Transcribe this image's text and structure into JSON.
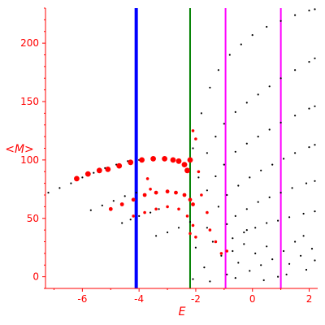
{
  "chart_data": {
    "type": "scatter",
    "title": "",
    "xlabel": "E",
    "ylabel": "<M>",
    "xlim": [
      -7.3,
      2.3
    ],
    "ylim": [
      -10,
      230
    ],
    "x_ticks": [
      -6,
      -4,
      -2,
      0,
      2
    ],
    "x_tick_labels": [
      "-6",
      "-4",
      "-2",
      "0",
      "2"
    ],
    "y_ticks": [
      0,
      50,
      100,
      150,
      200
    ],
    "y_tick_labels": [
      "0",
      "50",
      "100",
      "150",
      "200"
    ],
    "grid": false,
    "legend": "none",
    "axis_color": "#ff0000",
    "vertical_lines": [
      {
        "x": -4.1,
        "color": "#0000ff",
        "width": "thick"
      },
      {
        "x": -2.2,
        "color": "#008000",
        "width": "thin"
      },
      {
        "x": -0.95,
        "color": "#ff00ff",
        "width": "thin"
      },
      {
        "x": 1.0,
        "color": "#ff00ff",
        "width": "thin"
      }
    ],
    "series": [
      {
        "points": [
          [
            -7.2,
            72
          ],
          [
            -6.8,
            76
          ],
          [
            -6.4,
            80
          ],
          [
            -6.0,
            85
          ],
          [
            -5.6,
            89
          ],
          [
            -5.2,
            93
          ],
          [
            -4.8,
            96
          ],
          [
            -4.4,
            99
          ],
          [
            -4.0,
            100
          ]
        ],
        "color": "#000000",
        "marker": "dot"
      },
      {
        "points": [
          [
            -5.7,
            57
          ],
          [
            -5.3,
            61
          ],
          [
            -4.9,
            65
          ],
          [
            -4.5,
            69
          ],
          [
            -4.1,
            72
          ]
        ],
        "color": "#000000",
        "marker": "dot"
      },
      {
        "points": [
          [
            -4.6,
            46
          ],
          [
            -4.3,
            49
          ],
          [
            -4.0,
            52
          ],
          [
            -3.6,
            55
          ],
          [
            -3.3,
            58
          ]
        ],
        "color": "#000000",
        "marker": "dot"
      },
      {
        "points": [
          [
            -3.4,
            35
          ],
          [
            -3.0,
            38
          ],
          [
            -2.6,
            42
          ],
          [
            -2.2,
            47
          ]
        ],
        "color": "#000000",
        "marker": "dot"
      },
      {
        "points": [
          [
            -2.1,
            110
          ],
          [
            -1.8,
            140
          ],
          [
            -1.5,
            162
          ],
          [
            -1.2,
            177
          ],
          [
            -0.8,
            190
          ],
          [
            -0.4,
            199
          ],
          [
            0.0,
            207
          ],
          [
            0.5,
            214
          ],
          [
            1.0,
            219
          ],
          [
            1.5,
            224
          ],
          [
            2.0,
            228
          ],
          [
            2.2,
            229
          ]
        ],
        "color": "#000000",
        "marker": "dot"
      },
      {
        "points": [
          [
            -1.9,
            85
          ],
          [
            -1.6,
            106
          ],
          [
            -1.3,
            120
          ],
          [
            -1.0,
            131
          ],
          [
            -0.6,
            141
          ],
          [
            -0.2,
            149
          ],
          [
            0.2,
            156
          ],
          [
            0.6,
            163
          ],
          [
            1.0,
            170
          ],
          [
            1.5,
            177
          ],
          [
            2.0,
            184
          ],
          [
            2.2,
            187
          ]
        ],
        "color": "#000000",
        "marker": "dot"
      },
      {
        "points": [
          [
            -1.6,
            74
          ],
          [
            -1.3,
            86
          ],
          [
            -1.0,
            96
          ],
          [
            -0.6,
            107
          ],
          [
            -0.2,
            114
          ],
          [
            0.2,
            120
          ],
          [
            0.6,
            126
          ],
          [
            1.0,
            132
          ],
          [
            1.5,
            138
          ],
          [
            2.0,
            144
          ],
          [
            2.2,
            146
          ]
        ],
        "color": "#000000",
        "marker": "dot"
      },
      {
        "points": [
          [
            -1.2,
            60
          ],
          [
            -0.9,
            70
          ],
          [
            -0.5,
            78
          ],
          [
            -0.1,
            85
          ],
          [
            0.3,
            91
          ],
          [
            0.7,
            96
          ],
          [
            1.1,
            101
          ],
          [
            1.5,
            106
          ],
          [
            2.0,
            111
          ],
          [
            2.2,
            113
          ]
        ],
        "color": "#000000",
        "marker": "dot"
      },
      {
        "points": [
          [
            -0.9,
            45
          ],
          [
            -0.6,
            52
          ],
          [
            -0.2,
            58
          ],
          [
            0.2,
            64
          ],
          [
            0.6,
            68
          ],
          [
            1.0,
            72
          ],
          [
            1.4,
            76
          ],
          [
            1.9,
            80
          ],
          [
            2.2,
            82
          ]
        ],
        "color": "#000000",
        "marker": "dot"
      },
      {
        "points": [
          [
            -0.7,
            33
          ],
          [
            -0.3,
            38
          ],
          [
            0.1,
            42
          ],
          [
            0.5,
            46
          ],
          [
            0.9,
            48
          ],
          [
            1.3,
            51
          ],
          [
            1.8,
            54
          ],
          [
            2.2,
            56
          ]
        ],
        "color": "#000000",
        "marker": "dot"
      },
      {
        "points": [
          [
            -2.0,
            25
          ],
          [
            -1.7,
            8
          ],
          [
            -1.4,
            30
          ],
          [
            -1.1,
            18
          ],
          [
            -0.9,
            2
          ],
          [
            -0.7,
            22
          ],
          [
            -0.5,
            12
          ],
          [
            -0.3,
            28
          ],
          [
            -0.1,
            5
          ],
          [
            0.1,
            20
          ],
          [
            0.3,
            10
          ],
          [
            0.5,
            26
          ],
          [
            0.7,
            15
          ],
          [
            0.9,
            0
          ],
          [
            1.1,
            22
          ],
          [
            1.3,
            11
          ],
          [
            1.5,
            30
          ],
          [
            1.7,
            18
          ],
          [
            1.9,
            6
          ],
          [
            2.1,
            24
          ],
          [
            2.2,
            14
          ],
          [
            -2.1,
            -2
          ],
          [
            -1.5,
            -4
          ],
          [
            -0.6,
            -1
          ],
          [
            0.4,
            -3
          ],
          [
            1.2,
            2
          ],
          [
            1.8,
            35
          ],
          [
            -0.2,
            40
          ],
          [
            -1.6,
            42
          ]
        ],
        "color": "#000000",
        "marker": "dot"
      },
      {
        "points": [
          [
            -6.2,
            84
          ],
          [
            -5.8,
            88
          ],
          [
            -5.4,
            91
          ],
          [
            -5.1,
            92
          ],
          [
            -4.7,
            95
          ],
          [
            -4.3,
            98
          ],
          [
            -3.9,
            100
          ],
          [
            -3.5,
            101
          ],
          [
            -3.1,
            101
          ],
          [
            -2.8,
            100
          ],
          [
            -2.6,
            99
          ],
          [
            -2.4,
            96
          ],
          [
            -2.3,
            91
          ],
          [
            -2.2,
            100
          ]
        ],
        "color": "#ff0000",
        "marker": "large"
      },
      {
        "points": [
          [
            -5.0,
            58
          ],
          [
            -4.6,
            62
          ],
          [
            -4.2,
            66
          ],
          [
            -3.8,
            70
          ],
          [
            -3.4,
            72
          ],
          [
            -3.0,
            73
          ],
          [
            -2.7,
            72
          ],
          [
            -2.4,
            70
          ],
          [
            -2.2,
            66
          ],
          [
            -2.1,
            62
          ]
        ],
        "color": "#ff0000",
        "marker": "medium"
      },
      {
        "points": [
          [
            -4.2,
            52
          ],
          [
            -3.8,
            55
          ],
          [
            -3.4,
            58
          ],
          [
            -3.0,
            60
          ],
          [
            -2.6,
            58
          ],
          [
            -2.3,
            52
          ],
          [
            -2.1,
            44
          ],
          [
            -2.0,
            34
          ]
        ],
        "color": "#ff0000",
        "marker": "small"
      },
      {
        "points": [
          [
            -2.1,
            125
          ],
          [
            -2.0,
            118
          ],
          [
            -1.9,
            90
          ],
          [
            -1.8,
            70
          ],
          [
            -1.6,
            55
          ],
          [
            -1.5,
            40
          ],
          [
            -1.3,
            30
          ],
          [
            -1.1,
            20
          ],
          [
            -0.9,
            22
          ],
          [
            -3.6,
            75
          ],
          [
            -3.7,
            84
          ],
          [
            -2.2,
            37
          ]
        ],
        "color": "#ff0000",
        "marker": "small"
      }
    ]
  }
}
